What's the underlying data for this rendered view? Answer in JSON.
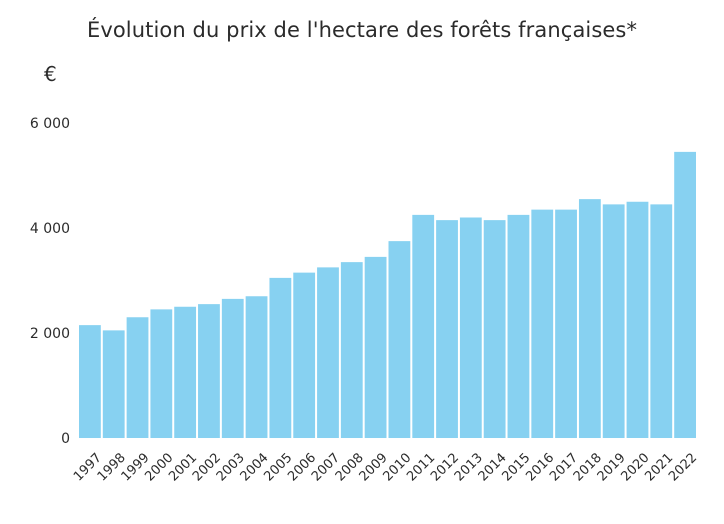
{
  "chart_data": {
    "type": "bar",
    "title": "Évolution du prix de l'hectare des forêts françaises*",
    "ylabel": "€",
    "xlabel": "",
    "categories": [
      "1997",
      "1998",
      "1999",
      "2000",
      "2001",
      "2002",
      "2003",
      "2004",
      "2005",
      "2006",
      "2007",
      "2008",
      "2009",
      "2010",
      "2011",
      "2012",
      "2013",
      "2014",
      "2015",
      "2016",
      "2017",
      "2018",
      "2019",
      "2020",
      "2021",
      "2022"
    ],
    "values": [
      2150,
      2050,
      2300,
      2450,
      2500,
      2550,
      2650,
      2700,
      3050,
      3150,
      3250,
      3350,
      3450,
      3750,
      4250,
      4150,
      4200,
      4150,
      4250,
      4350,
      4350,
      4550,
      4450,
      4500,
      4450,
      5450
    ],
    "ylim": [
      0,
      6000
    ],
    "yticks": [
      0,
      2000,
      4000,
      6000
    ],
    "ytick_labels": [
      "0",
      "2 000",
      "4 000",
      "6 000"
    ],
    "grid": false,
    "bar_color": "#87d1f1"
  }
}
